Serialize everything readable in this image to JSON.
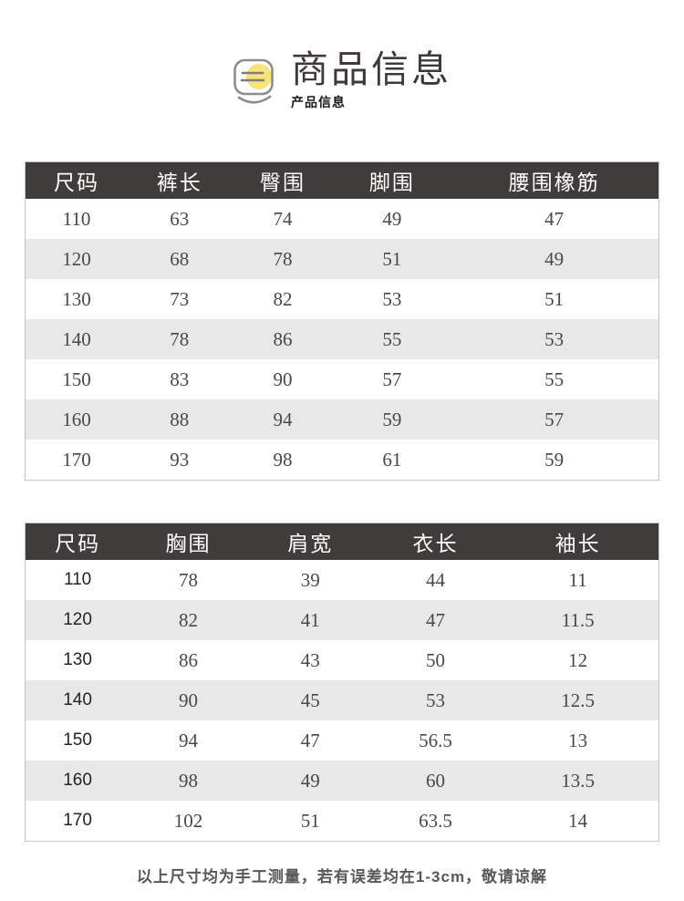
{
  "header": {
    "title": "商品信息",
    "subtitle": "产品信息",
    "accent_yellow": "#f8e279",
    "icon_stroke_gray": "#8d8d8d"
  },
  "colors": {
    "table_header_bg": "#403c3b",
    "table_alt_row": "#e9e8e8",
    "cell_text": "#4a4747",
    "table_border": "#c6c6c6",
    "note_text": "#595757"
  },
  "tables": [
    {
      "name": "pants-size-table",
      "columns": [
        "尺码",
        "裤长",
        "臀围",
        "脚围",
        "腰围橡筋"
      ],
      "rows": [
        [
          "110",
          "63",
          "74",
          "49",
          "47"
        ],
        [
          "120",
          "68",
          "78",
          "51",
          "49"
        ],
        [
          "130",
          "73",
          "82",
          "53",
          "51"
        ],
        [
          "140",
          "78",
          "86",
          "55",
          "53"
        ],
        [
          "150",
          "83",
          "90",
          "57",
          "55"
        ],
        [
          "160",
          "88",
          "94",
          "59",
          "57"
        ],
        [
          "170",
          "93",
          "98",
          "61",
          "59"
        ]
      ]
    },
    {
      "name": "top-size-table",
      "columns": [
        "尺码",
        "胸围",
        "肩宽",
        "衣长",
        "袖长"
      ],
      "rows": [
        [
          "110",
          "78",
          "39",
          "44",
          "11"
        ],
        [
          "120",
          "82",
          "41",
          "47",
          "11.5"
        ],
        [
          "130",
          "86",
          "43",
          "50",
          "12"
        ],
        [
          "140",
          "90",
          "45",
          "53",
          "12.5"
        ],
        [
          "150",
          "94",
          "47",
          "56.5",
          "13"
        ],
        [
          "160",
          "98",
          "49",
          "60",
          "13.5"
        ],
        [
          "170",
          "102",
          "51",
          "63.5",
          "14"
        ]
      ]
    }
  ],
  "footer": {
    "note": "以上尺寸均为手工测量，若有误差均在1-3cm，敬请谅解"
  }
}
